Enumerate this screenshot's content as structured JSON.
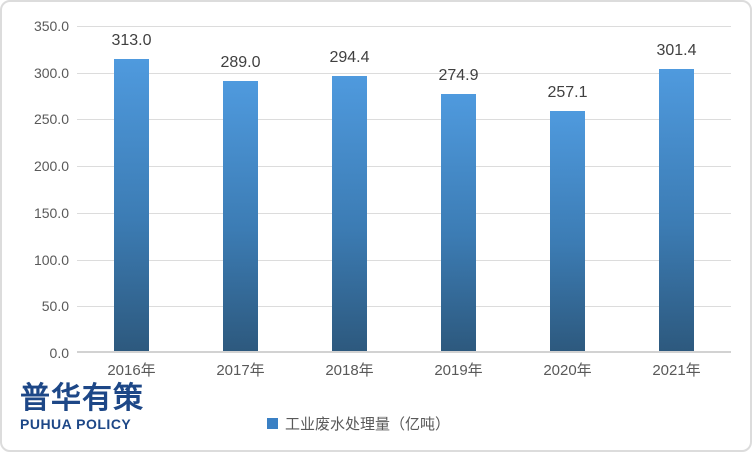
{
  "chart_data": {
    "type": "bar",
    "title": "",
    "xlabel": "",
    "ylabel": "",
    "categories": [
      "2016年",
      "2017年",
      "2018年",
      "2019年",
      "2020年",
      "2021年"
    ],
    "values": [
      313.0,
      289.0,
      294.4,
      274.9,
      257.1,
      301.4
    ],
    "value_labels": [
      "313.0",
      "289.0",
      "294.4",
      "274.9",
      "257.1",
      "301.4"
    ],
    "ylim": [
      0,
      350
    ],
    "ytick_interval": 50,
    "ytick_labels": [
      "350.0",
      "300.0",
      "250.0",
      "200.0",
      "150.0",
      "100.0",
      "50.0",
      "0.0"
    ],
    "grid": true,
    "legend": {
      "label": "工业废水处理量（亿吨）",
      "position": "bottom",
      "marker_color": "#3a80c4"
    },
    "colors": {
      "bar_gradient_top": "#4f9ade",
      "bar_gradient_bottom": "#2d597e",
      "gridline": "#dcdcdc",
      "axis_line": "#d2d2d2",
      "value_label": "#404040",
      "tick_label": "#595959"
    }
  },
  "branding": {
    "logo_cn": "普华有策",
    "logo_en": "PUHUA POLICY",
    "logo_color": "#1d4787"
  }
}
